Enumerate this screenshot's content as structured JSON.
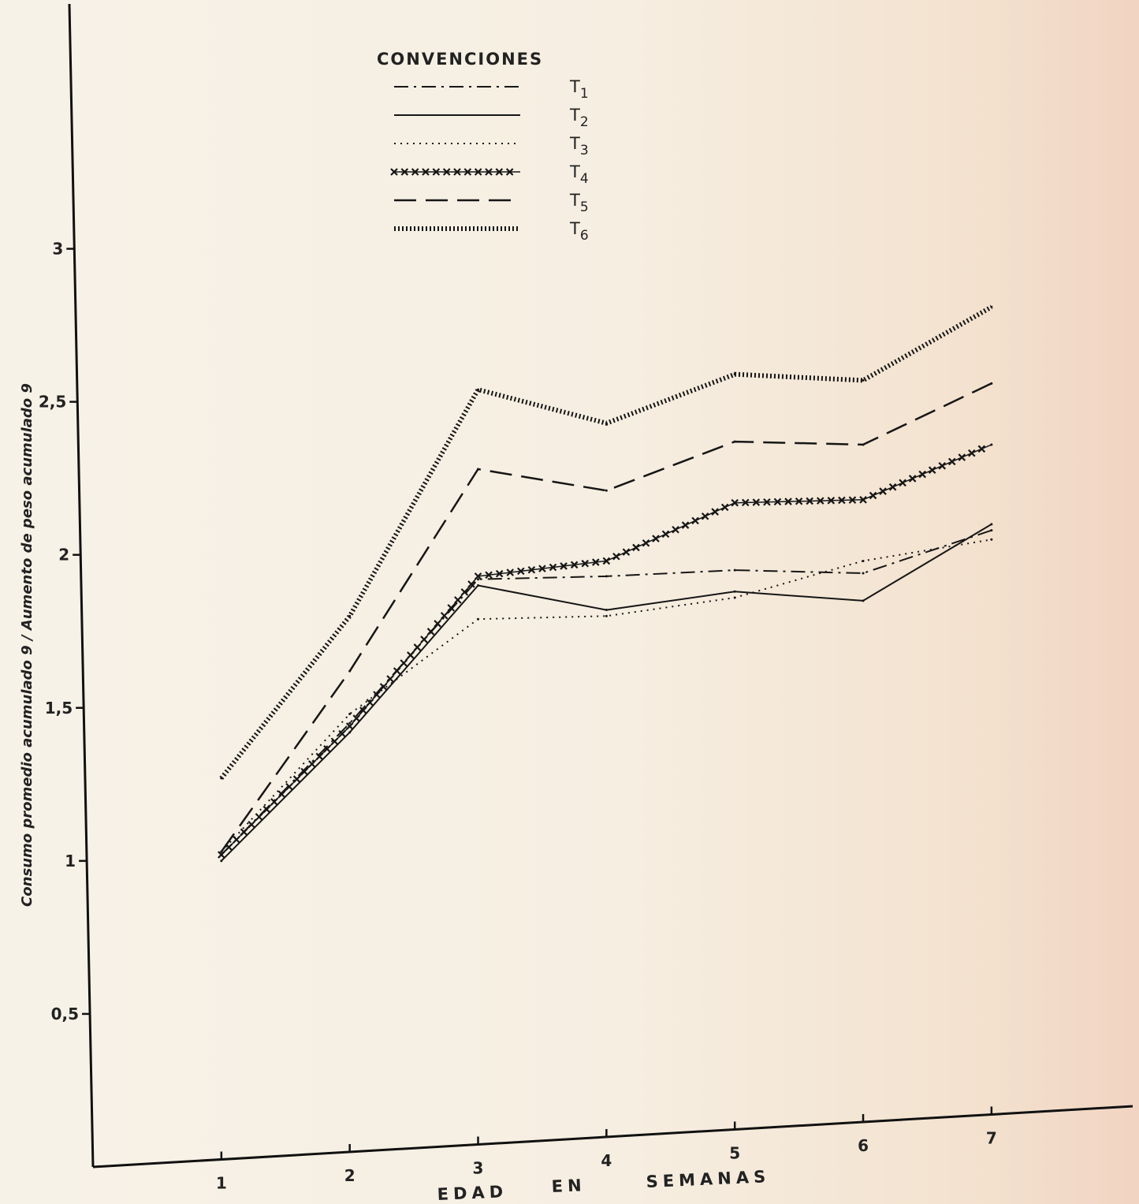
{
  "chart_data": {
    "type": "line",
    "ylabel": "Consumo promedio acumulado 9 / Aumento de peso acumulado 9",
    "xlabel": [
      "EDAD",
      "EN",
      "SEMANAS"
    ],
    "x": [
      1,
      2,
      3,
      4,
      5,
      6,
      7
    ],
    "x_tick_labels": [
      "1",
      "2",
      "3",
      "4",
      "5",
      "6",
      "7"
    ],
    "y_ticks": [
      0.5,
      1,
      1.5,
      2,
      2.5,
      3
    ],
    "y_tick_labels": [
      "0,5",
      "1",
      "1,5",
      "2",
      "2,5",
      "3"
    ],
    "xlim": [
      0,
      8.1
    ],
    "ylim": [
      0,
      3.8
    ],
    "grid": false,
    "legend": {
      "title": "CONVENCIONES",
      "placement": "top-center"
    },
    "series": [
      {
        "name": "T1",
        "style": "dash-dot",
        "values": [
          1.02,
          1.45,
          1.92,
          1.93,
          1.95,
          1.94,
          2.08
        ]
      },
      {
        "name": "T2",
        "style": "solid",
        "values": [
          1.0,
          1.42,
          1.9,
          1.82,
          1.88,
          1.85,
          2.1
        ]
      },
      {
        "name": "T3",
        "style": "dotted",
        "values": [
          1.03,
          1.48,
          1.79,
          1.8,
          1.86,
          1.98,
          2.05
        ]
      },
      {
        "name": "T4",
        "style": "cross",
        "values": [
          1.02,
          1.44,
          1.93,
          1.98,
          2.17,
          2.18,
          2.36
        ]
      },
      {
        "name": "T5",
        "style": "long-dash",
        "values": [
          1.03,
          1.62,
          2.28,
          2.21,
          2.37,
          2.36,
          2.56
        ]
      },
      {
        "name": "T6",
        "style": "dense-dot",
        "values": [
          1.27,
          1.8,
          2.54,
          2.43,
          2.59,
          2.57,
          2.81
        ]
      }
    ]
  }
}
